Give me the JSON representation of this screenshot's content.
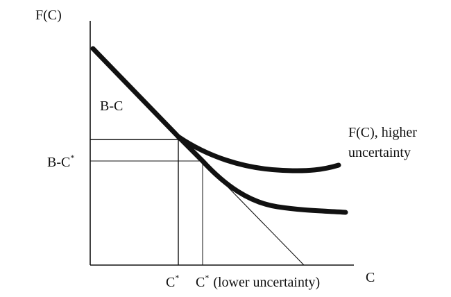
{
  "labels": {
    "y_axis": "F(C)",
    "x_axis": "C",
    "line_label": "B-C",
    "y_tick_base": "B-C",
    "y_tick_sup": "*",
    "x_tick1_base": "C",
    "x_tick1_sup": "*",
    "x_tick2_base": "C",
    "x_tick2_sup": "*",
    "x_tick2_suffix": "(lower uncertainty)",
    "curve_label_line1": "F(C), higher",
    "curve_label_line2": "uncertainty"
  },
  "colors": {
    "ink": "#111111",
    "background": "#ffffff"
  }
}
